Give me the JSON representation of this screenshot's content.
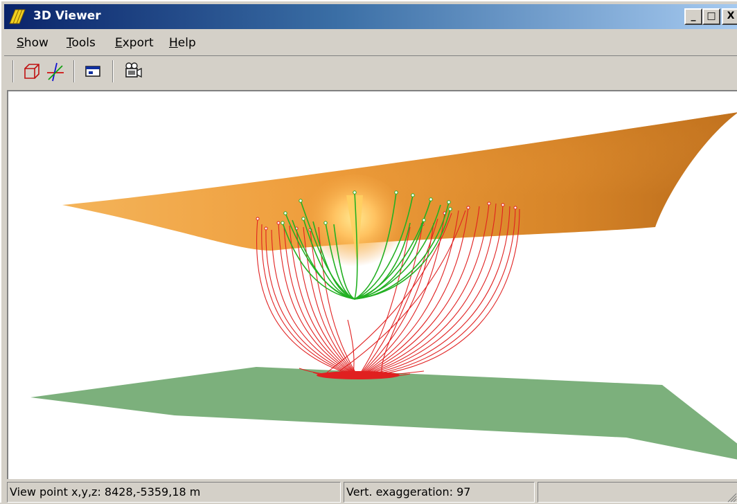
{
  "window": {
    "title": "3D Viewer",
    "controls": {
      "minimize": "_",
      "maximize": "□",
      "close": "X"
    }
  },
  "menu": {
    "items": [
      {
        "mnemonic": "S",
        "rest": "how"
      },
      {
        "mnemonic": "T",
        "rest": "ools"
      },
      {
        "mnemonic": "E",
        "rest": "xport"
      },
      {
        "mnemonic": "H",
        "rest": "elp"
      }
    ]
  },
  "toolbar": {
    "icons": [
      "bounding-box-icon",
      "axes-icon",
      "view-window-icon",
      "camera-icon"
    ]
  },
  "scene": {
    "surface_color": "#e89a3a",
    "plane_color": "#7cb07c",
    "red_wells_color": "#e02020",
    "green_wells_color": "#22b022"
  },
  "status": {
    "viewpoint": "View point x,y,z: 8428,-5359,18 m",
    "exaggeration": "Vert. exaggeration: 97",
    "extra": ""
  }
}
